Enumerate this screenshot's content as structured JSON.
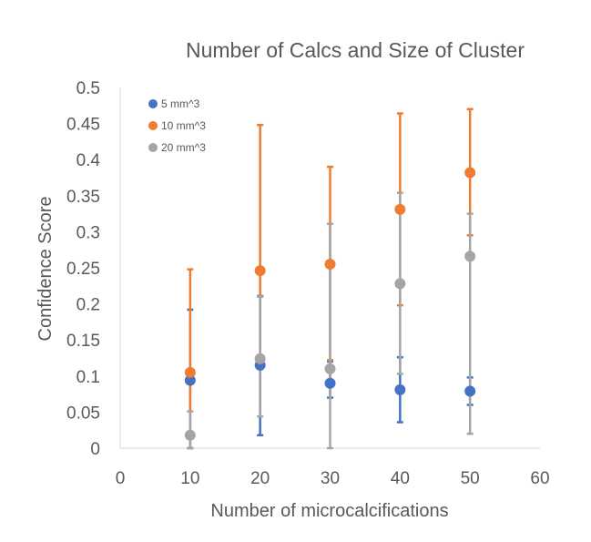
{
  "chart_data": {
    "type": "scatter",
    "title": "Number of Calcs and Size of Cluster",
    "xlabel": "Number of microcalcifications",
    "ylabel": "Confidence Score",
    "xlim": [
      0,
      60
    ],
    "ylim": [
      0,
      0.5
    ],
    "x_ticks": [
      0,
      10,
      20,
      30,
      40,
      50,
      60
    ],
    "y_ticks": [
      0,
      0.05,
      0.1,
      0.15,
      0.2,
      0.25,
      0.3,
      0.35,
      0.4,
      0.45,
      0.5
    ],
    "x_tick_labels": [
      "0",
      "10",
      "20",
      "30",
      "40",
      "50",
      "60"
    ],
    "y_tick_labels": [
      "0",
      "0.05",
      "0.1",
      "0.15",
      "0.2",
      "0.25",
      "0.3",
      "0.35",
      "0.4",
      "0.45",
      "0.5"
    ],
    "grid": false,
    "legend_position": "top-left",
    "series": [
      {
        "name": "5 mm^3",
        "color": "#4472C4",
        "x": [
          10,
          20,
          30,
          40,
          50
        ],
        "y": [
          0.094,
          0.115,
          0.09,
          0.081,
          0.079
        ],
        "err_low": [
          0.094,
          0.097,
          0.02,
          0.045,
          0.019
        ],
        "err_high": [
          0.098,
          0.096,
          0.03,
          0.045,
          0.019
        ]
      },
      {
        "name": "10 mm^3",
        "color": "#ED7D31",
        "x": [
          10,
          20,
          30,
          40,
          50
        ],
        "y": [
          0.105,
          0.246,
          0.255,
          0.331,
          0.382
        ],
        "err_low": [
          0.105,
          0.036,
          0.133,
          0.133,
          0.087
        ],
        "err_high": [
          0.143,
          0.202,
          0.135,
          0.133,
          0.088
        ]
      },
      {
        "name": "20 mm^3",
        "color": "#A5A5A5",
        "x": [
          10,
          20,
          30,
          40,
          50
        ],
        "y": [
          0.018,
          0.124,
          0.11,
          0.228,
          0.266
        ],
        "err_low": [
          0.018,
          0.08,
          0.11,
          0.125,
          0.246
        ],
        "err_high": [
          0.033,
          0.086,
          0.201,
          0.126,
          0.059
        ]
      }
    ]
  }
}
